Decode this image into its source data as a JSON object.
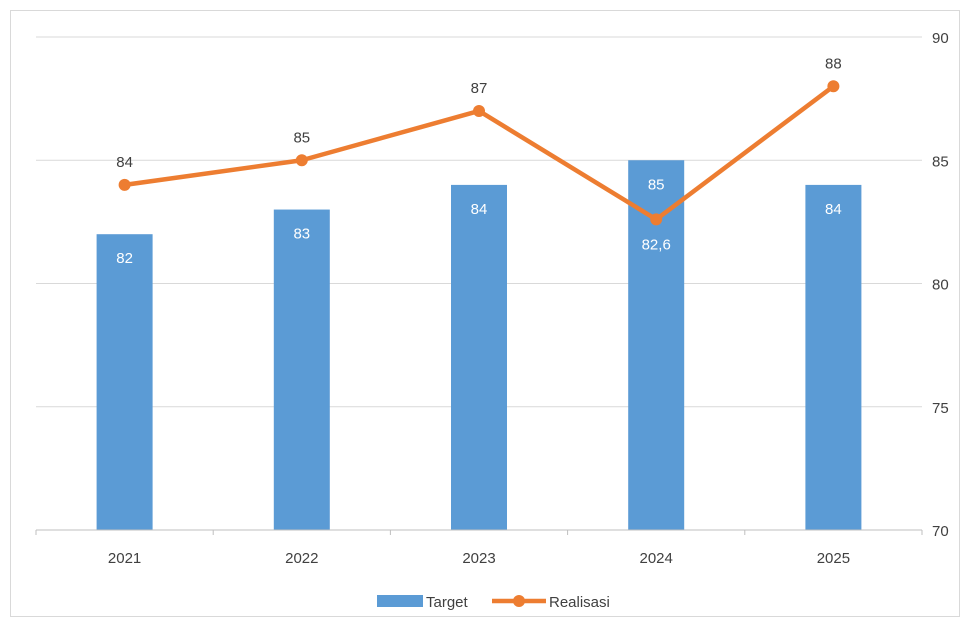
{
  "chart_data": {
    "type": "bar",
    "categories": [
      "2021",
      "2022",
      "2023",
      "2024",
      "2025"
    ],
    "series": [
      {
        "name": "Target",
        "type": "bar",
        "values": [
          82,
          83,
          84,
          85,
          84
        ],
        "labels": [
          "82",
          "83",
          "84",
          "85",
          "84"
        ],
        "color": "#5b9bd5"
      },
      {
        "name": "Realisasi",
        "type": "line",
        "values": [
          84,
          85,
          87,
          82.6,
          88
        ],
        "labels": [
          "84",
          "85",
          "87",
          "82,6",
          "88"
        ],
        "color": "#ed7d31"
      }
    ],
    "y_axis": "right",
    "ylim": [
      70,
      90
    ],
    "yticks": [
      "70",
      "75",
      "80",
      "85",
      "90"
    ],
    "grid": true,
    "legend": "bottom",
    "title": "",
    "xlabel": "",
    "ylabel": ""
  }
}
